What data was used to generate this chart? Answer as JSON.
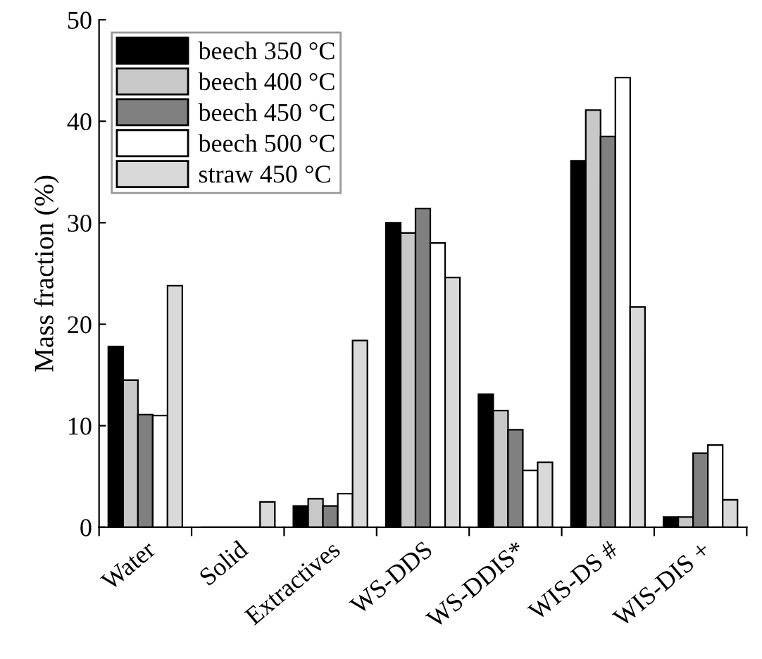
{
  "chart_data": {
    "type": "bar",
    "ylabel": "Mass fraction (%)",
    "categories": [
      "Water",
      "Solid",
      "Extractives",
      "WS-DDS",
      "WS-DDIS*",
      "WIS-DS #",
      "WIS-DIS +"
    ],
    "series": [
      {
        "name": "beech 350 °C",
        "color": "#000000",
        "values": [
          17.8,
          0,
          2.1,
          30.0,
          13.1,
          36.1,
          1.0
        ]
      },
      {
        "name": "beech 400 °C",
        "color": "#c8c8c8",
        "values": [
          14.5,
          0,
          2.8,
          29.0,
          11.5,
          41.1,
          1.0
        ]
      },
      {
        "name": "beech 450 °C",
        "color": "#808080",
        "values": [
          11.1,
          0,
          2.1,
          31.4,
          9.6,
          38.5,
          7.3
        ]
      },
      {
        "name": "beech 500 °C",
        "color": "#ffffff",
        "values": [
          11.0,
          0,
          3.3,
          28.0,
          5.6,
          44.3,
          8.1
        ]
      },
      {
        "name": "straw 450 °C",
        "color": "#d9d9d9",
        "values": [
          23.8,
          2.5,
          18.4,
          24.6,
          6.4,
          21.7,
          2.7
        ]
      }
    ],
    "ylim": [
      0,
      50
    ],
    "yticks": [
      0,
      10,
      20,
      30,
      40,
      50
    ],
    "grid": false,
    "legend": "top left"
  }
}
